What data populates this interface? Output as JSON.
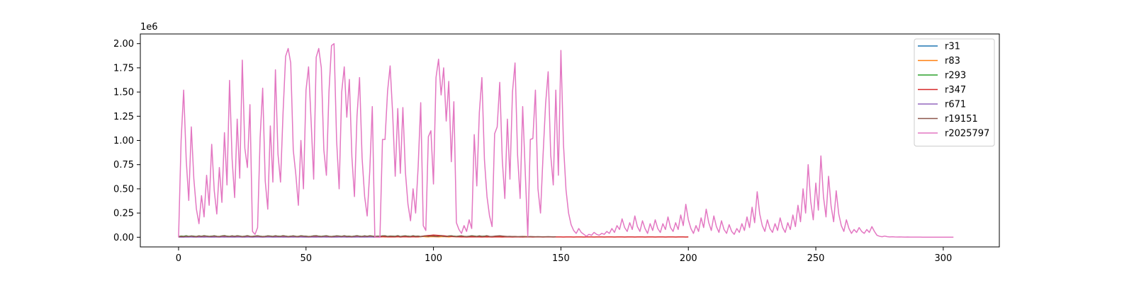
{
  "chart_data": {
    "type": "line",
    "title": "",
    "xlabel": "",
    "ylabel": "",
    "y_offset_label": "1e6",
    "y_scale": 1000000,
    "xlim": [
      -15,
      322
    ],
    "ylim": [
      -100000,
      2100000
    ],
    "x_ticks": [
      0,
      50,
      100,
      150,
      200,
      250,
      300
    ],
    "x_tick_labels": [
      "0",
      "50",
      "100",
      "150",
      "200",
      "250",
      "300"
    ],
    "y_ticks": [
      0,
      250000,
      500000,
      750000,
      1000000,
      1250000,
      1500000,
      1750000,
      2000000
    ],
    "y_tick_labels": [
      "0.00",
      "0.25",
      "0.50",
      "0.75",
      "1.00",
      "1.25",
      "1.50",
      "1.75",
      "2.00"
    ],
    "legend_position": "top-right",
    "series": [
      {
        "name": "r31",
        "color": "#1f77b4",
        "y": [
          5000,
          8000,
          6000,
          10000,
          7000,
          12000,
          9000,
          6000,
          11000,
          8000,
          13000,
          10000,
          7000,
          9000,
          12000,
          8000,
          6000,
          10000,
          14000,
          9000,
          7000,
          11000,
          8000,
          12000,
          10000,
          6000,
          9000,
          13000,
          8000,
          7000,
          10000,
          12000,
          9000,
          6000,
          8000,
          11000,
          10000,
          7000,
          12000,
          9000,
          8000,
          13000,
          10000,
          6000,
          9000,
          11000,
          8000,
          7000,
          12000,
          10000,
          9000,
          6000,
          8000,
          11000,
          13000,
          9000,
          7000,
          10000,
          12000,
          8000,
          6000,
          9000,
          11000,
          10000,
          7000,
          12000,
          8000,
          9000,
          6000,
          10000,
          13000,
          9000,
          7000,
          11000,
          8000,
          12000,
          10000,
          6000,
          9000,
          8000,
          11000,
          12000,
          7000,
          10000,
          9000,
          8000,
          13000,
          6000,
          10000,
          11000,
          9000,
          7000,
          12000,
          8000,
          10000,
          6000,
          9000,
          11000,
          8000,
          12000
        ]
      },
      {
        "name": "r83",
        "color": "#ff7f0e",
        "y": [
          3000,
          5000,
          4000,
          6000,
          5000,
          7000,
          4000,
          6000,
          8000,
          5000,
          4000,
          7000,
          6000,
          5000,
          3000,
          6000,
          8000,
          5000,
          4000,
          7000,
          6000,
          5000,
          4000,
          6000,
          7000,
          5000,
          3000,
          6000,
          8000,
          4000,
          5000,
          7000,
          6000,
          4000,
          5000,
          8000,
          6000,
          5000,
          4000,
          7000,
          6000,
          3000,
          5000,
          7000,
          6000,
          4000,
          5000,
          8000,
          6000,
          5000,
          4000,
          7000,
          6000,
          5000,
          3000,
          6000,
          8000,
          5000,
          4000,
          7000,
          6000,
          5000,
          4000,
          6000,
          7000,
          5000,
          3000,
          6000,
          8000,
          4000,
          5000,
          7000,
          6000,
          4000,
          5000,
          8000,
          6000,
          5000,
          4000,
          7000,
          6000,
          3000,
          5000,
          7000,
          6000,
          4000,
          5000,
          8000,
          6000,
          5000,
          4000,
          7000,
          6000,
          5000,
          3000,
          6000,
          8000,
          5000,
          4000,
          7000,
          6000,
          5000,
          4000,
          6000,
          7000,
          5000,
          3000,
          6000,
          8000,
          4000,
          5000,
          7000,
          6000,
          4000,
          5000,
          8000,
          6000,
          5000,
          4000,
          7000,
          6000,
          3000,
          5000,
          7000,
          6000,
          4000,
          5000,
          8000,
          6000,
          5000,
          4000,
          7000,
          6000,
          5000,
          3000,
          6000,
          8000,
          5000
        ]
      },
      {
        "name": "r293",
        "color": "#2ca02c",
        "y": [
          8000,
          12000,
          10000,
          15000,
          9000,
          13000,
          11000,
          8000,
          14000,
          10000,
          16000,
          12000,
          9000,
          11000,
          15000,
          10000,
          8000,
          13000,
          17000,
          11000,
          9000,
          14000,
          10000,
          15000,
          12000,
          8000,
          11000,
          16000,
          10000,
          9000,
          12000,
          15000,
          11000,
          8000,
          10000,
          14000,
          12000,
          9000,
          15000,
          11000,
          10000,
          16000,
          12000,
          8000,
          11000,
          14000,
          10000,
          9000,
          15000,
          12000,
          11000,
          8000,
          10000,
          14000,
          16000,
          11000,
          9000,
          12000,
          15000,
          10000,
          8000,
          11000,
          14000,
          12000,
          9000,
          15000,
          10000,
          11000,
          8000,
          12000,
          16000,
          11000,
          9000,
          14000,
          10000,
          15000,
          12000,
          8000,
          11000,
          10000,
          14000,
          15000,
          9000,
          12000,
          11000,
          10000,
          16000,
          8000,
          12000,
          14000,
          11000,
          9000,
          15000,
          10000,
          12000,
          8000,
          11000,
          14000,
          10000,
          15000,
          12000,
          9000,
          11000,
          16000,
          10000,
          8000,
          13000,
          15000,
          11000,
          9000,
          12000,
          14000,
          10000,
          8000,
          11000,
          15000,
          12000,
          9000,
          14000,
          10000,
          11000,
          16000
        ]
      },
      {
        "name": "r347",
        "color": "#d62728",
        "y": [
          2000,
          3000,
          2500,
          4000,
          3000,
          5000,
          3500,
          2500,
          4500,
          3000,
          6000,
          4000,
          3000,
          3500,
          5000,
          3000,
          2500,
          4500,
          6000,
          3500,
          3000,
          5000,
          3500,
          5500,
          4000,
          2500,
          3500,
          6000,
          3000,
          2500,
          4000,
          5500,
          3500,
          2500,
          3000,
          5000,
          4000,
          3000,
          5500,
          3500,
          3000,
          6000,
          4000,
          2500,
          3500,
          5000,
          3000,
          2500,
          5500,
          4000,
          3500,
          2500,
          3000,
          5000,
          6000,
          3500,
          3000,
          4000,
          5500,
          3000,
          2500,
          3500,
          5000,
          4000,
          3000,
          5500,
          3000,
          3500,
          2500,
          4000,
          6000,
          3500,
          3000,
          5000,
          3500,
          5500,
          4000,
          2500,
          3500,
          3000,
          5000,
          5500,
          3000,
          4000,
          3500,
          3000,
          6000,
          2500,
          4000,
          5000,
          3500,
          3000,
          5500,
          3000,
          4000,
          8000,
          12000,
          15000,
          18000,
          20000,
          22000,
          21000,
          19000,
          17000,
          15000,
          12000,
          10000,
          8000,
          6000,
          5000,
          4000,
          3500,
          3000,
          2500,
          3000,
          3500,
          4000,
          3500,
          3000,
          2500,
          3000,
          3500,
          3000,
          2500,
          3000,
          3500,
          3000,
          2500,
          3000,
          3500,
          3000,
          2500,
          3000,
          3500,
          3000,
          2500,
          3000,
          3000,
          3000,
          2500,
          3000,
          3000,
          3000,
          2500,
          3000,
          3000,
          3000,
          2500,
          3000,
          3000,
          3000,
          2500,
          3000,
          3000,
          3000,
          2500,
          3000,
          3000,
          3000,
          2500,
          3000,
          3000,
          3000,
          2500,
          3000,
          3000,
          3000,
          2500,
          3000,
          3000,
          3000,
          2500,
          3000,
          3000,
          3000,
          2500,
          3000,
          3000,
          3000,
          2500,
          3000,
          3000,
          3000,
          2500,
          3000,
          3000,
          3000,
          2500,
          3000,
          3000,
          3000,
          2500,
          3000,
          3000,
          3000,
          2500,
          3000,
          3000,
          3000,
          2500,
          3000
        ]
      },
      {
        "name": "r671",
        "color": "#9467bd",
        "y": [
          1000,
          2000,
          1500,
          3000,
          2000,
          2500,
          1500,
          2000,
          3000,
          2000,
          1500,
          2500,
          2000,
          1500,
          1000,
          2000,
          3000,
          2000,
          1500,
          2500,
          2000,
          1500,
          1000,
          2000,
          2500,
          2000,
          1000,
          2000,
          3000,
          1500,
          2000,
          2500,
          2000,
          1500,
          2000,
          3000,
          2000,
          1500,
          1000,
          2500,
          2000,
          1000,
          1500,
          2500,
          2000,
          1500,
          2000,
          3000,
          2000,
          1500,
          1000,
          2500,
          2000,
          1500,
          1000,
          2000,
          3000,
          2000,
          1500,
          2500,
          2000,
          1500,
          1000,
          2000,
          2500,
          2000,
          1000,
          2000,
          3000,
          1500,
          2000,
          2500,
          2000,
          1500,
          2000,
          3000,
          2000,
          1500,
          1000,
          2500
        ]
      },
      {
        "name": "r19151",
        "color": "#8c564b",
        "y": [
          6000,
          9000,
          7000,
          11000,
          8000,
          12000,
          9000,
          7000,
          13000,
          9000,
          14000,
          11000,
          8000,
          10000,
          13000,
          9000,
          7000,
          12000,
          15000,
          10000,
          8000,
          13000,
          9000,
          14000,
          11000,
          7000,
          10000,
          15000,
          9000,
          8000,
          11000,
          14000,
          10000,
          7000,
          9000,
          13000,
          11000,
          8000,
          14000,
          10000,
          9000,
          15000,
          11000,
          7000,
          10000,
          13000,
          9000,
          8000,
          14000,
          11000,
          10000,
          7000,
          9000,
          13000,
          15000,
          10000,
          8000,
          11000,
          14000,
          9000,
          7000,
          10000,
          13000,
          11000,
          8000,
          14000,
          9000,
          10000,
          7000,
          11000,
          15000,
          10000,
          8000,
          13000,
          9000,
          14000,
          11000,
          7000,
          10000,
          9000,
          13000,
          14000,
          8000,
          11000,
          10000,
          9000,
          15000,
          7000,
          11000,
          13000,
          10000,
          8000,
          14000,
          9000,
          11000,
          7000,
          10000,
          13000,
          9000,
          14000,
          11000,
          8000,
          10000,
          15000,
          9000,
          7000,
          12000,
          14000,
          10000,
          8000,
          11000,
          13000,
          9000,
          7000,
          10000,
          14000,
          11000,
          8000,
          13000,
          9000,
          10000,
          15000,
          9000,
          8000,
          11000,
          13000,
          15000,
          12000,
          10000,
          8000,
          9000,
          7000,
          8000,
          6000,
          7000,
          8000,
          6000,
          5000,
          7000,
          6000,
          5000,
          6000,
          5000,
          4000,
          5000,
          6000,
          5000,
          4000,
          5000
        ]
      },
      {
        "name": "r2025797",
        "color": "#e377c2",
        "y": [
          0,
          1000000,
          1520000,
          800000,
          380000,
          1140000,
          600000,
          290000,
          140000,
          430000,
          210000,
          640000,
          330000,
          960000,
          480000,
          240000,
          720000,
          360000,
          1080000,
          540000,
          1620000,
          810000,
          410000,
          1220000,
          610000,
          1830000,
          920000,
          720000,
          1370000,
          60000,
          30000,
          100000,
          1030000,
          1540000,
          580000,
          290000,
          1150000,
          570000,
          1730000,
          860000,
          570000,
          1290000,
          1870000,
          1950000,
          1800000,
          900000,
          650000,
          330000,
          1000000,
          500000,
          1520000,
          1760000,
          1200000,
          600000,
          1860000,
          1950000,
          1750000,
          900000,
          640000,
          1500000,
          1980000,
          2000000,
          1000000,
          500000,
          1500000,
          1760000,
          1240000,
          1630000,
          830000,
          420000,
          1250000,
          1650000,
          820000,
          420000,
          220000,
          680000,
          1350000,
          0,
          0,
          0,
          1010000,
          1010000,
          1510000,
          1770000,
          1270000,
          630000,
          1330000,
          660000,
          1340000,
          670000,
          340000,
          170000,
          500000,
          250000,
          730000,
          1390000,
          120000,
          70000,
          1040000,
          1100000,
          550000,
          1650000,
          1840000,
          1470000,
          1750000,
          1200000,
          1610000,
          780000,
          1400000,
          150000,
          80000,
          40000,
          120000,
          60000,
          180000,
          90000,
          1060000,
          530000,
          1290000,
          1650000,
          800000,
          420000,
          220000,
          110000,
          1070000,
          1140000,
          1600000,
          800000,
          400000,
          1220000,
          600000,
          1500000,
          1800000,
          850000,
          400000,
          1350000,
          680000,
          10000,
          1010000,
          1020000,
          1520000,
          500000,
          250000,
          850000,
          1380000,
          1710000,
          850000,
          540000,
          1520000,
          640000,
          1930000,
          960000,
          490000,
          250000,
          130000,
          70000,
          40000,
          90000,
          50000,
          30000,
          10000,
          30000,
          20000,
          50000,
          30000,
          20000,
          40000,
          30000,
          60000,
          40000,
          90000,
          50000,
          120000,
          80000,
          190000,
          100000,
          60000,
          150000,
          80000,
          220000,
          110000,
          60000,
          170000,
          90000,
          40000,
          140000,
          70000,
          180000,
          90000,
          50000,
          140000,
          80000,
          210000,
          100000,
          60000,
          150000,
          80000,
          230000,
          120000,
          340000,
          180000,
          90000,
          40000,
          120000,
          60000,
          200000,
          100000,
          290000,
          150000,
          70000,
          220000,
          110000,
          50000,
          170000,
          80000,
          40000,
          130000,
          60000,
          30000,
          90000,
          50000,
          140000,
          70000,
          210000,
          100000,
          310000,
          150000,
          470000,
          240000,
          120000,
          60000,
          180000,
          90000,
          50000,
          140000,
          70000,
          200000,
          100000,
          50000,
          150000,
          80000,
          230000,
          110000,
          330000,
          160000,
          500000,
          250000,
          750000,
          370000,
          180000,
          560000,
          280000,
          840000,
          420000,
          210000,
          630000,
          320000,
          160000,
          480000,
          240000,
          120000,
          60000,
          180000,
          90000,
          40000,
          80000,
          50000,
          100000,
          60000,
          40000,
          80000,
          50000,
          110000,
          60000,
          20000,
          10000,
          5000,
          12000,
          6000,
          3000,
          5000,
          3000,
          2000,
          3000,
          2000,
          1000,
          2000,
          1000,
          1000,
          1000,
          1000,
          1000,
          500,
          500,
          500,
          500,
          500,
          500,
          500,
          500,
          500,
          500,
          500,
          500,
          500
        ]
      }
    ]
  }
}
